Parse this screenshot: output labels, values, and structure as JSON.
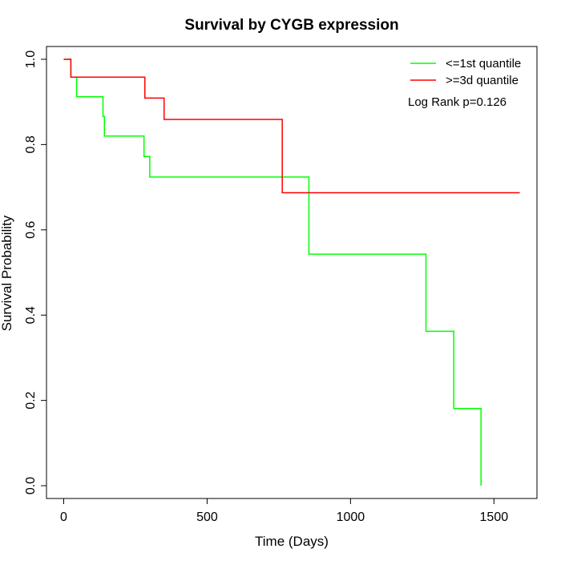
{
  "chart_data": {
    "type": "line",
    "title": "Survival by CYGB expression",
    "xlabel": "Time (Days)",
    "ylabel": "Survival Probability",
    "xlim": [
      -60,
      1650
    ],
    "ylim": [
      -0.03,
      1.03
    ],
    "x_ticks": [
      0,
      500,
      1000,
      1500
    ],
    "y_ticks": [
      0.0,
      0.2,
      0.4,
      0.6,
      0.8,
      1.0
    ],
    "y_tick_labels": [
      "0.0",
      "0.2",
      "0.4",
      "0.6",
      "0.8",
      "1.0"
    ],
    "grid": false,
    "step_curves": true,
    "legend": {
      "position": "top-right"
    },
    "annotation": "Log Rank p=0.126",
    "series": [
      {
        "name": "<=1st quantile",
        "color": "#00ff00",
        "points": [
          [
            0,
            1.0
          ],
          [
            25,
            1.0
          ],
          [
            25,
            0.958
          ],
          [
            45,
            0.958
          ],
          [
            45,
            0.912
          ],
          [
            137,
            0.912
          ],
          [
            137,
            0.866
          ],
          [
            142,
            0.866
          ],
          [
            142,
            0.82
          ],
          [
            280,
            0.82
          ],
          [
            280,
            0.772
          ],
          [
            300,
            0.772
          ],
          [
            300,
            0.724
          ],
          [
            855,
            0.724
          ],
          [
            855,
            0.543
          ],
          [
            1263,
            0.543
          ],
          [
            1263,
            0.362
          ],
          [
            1360,
            0.362
          ],
          [
            1360,
            0.181
          ],
          [
            1455,
            0.181
          ],
          [
            1455,
            0.0
          ]
        ]
      },
      {
        "name": ">=3d quantile",
        "color": "#ff0000",
        "points": [
          [
            0,
            1.0
          ],
          [
            25,
            1.0
          ],
          [
            25,
            0.958
          ],
          [
            283,
            0.958
          ],
          [
            283,
            0.909
          ],
          [
            350,
            0.909
          ],
          [
            350,
            0.859
          ],
          [
            762,
            0.859
          ],
          [
            762,
            0.687
          ],
          [
            1590,
            0.687
          ]
        ]
      }
    ]
  }
}
